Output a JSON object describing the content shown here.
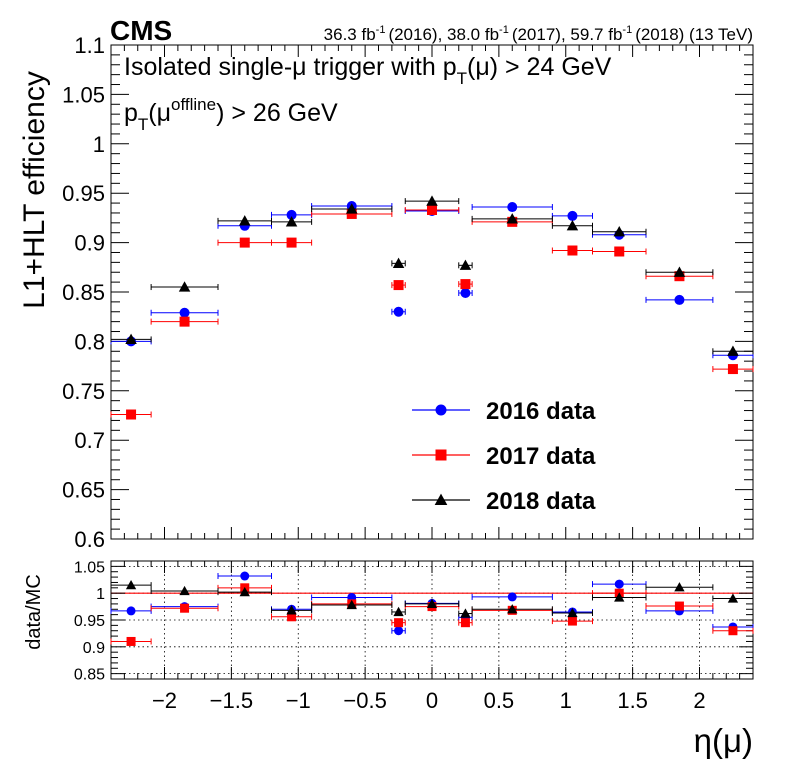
{
  "chart_data": [
    {
      "type": "scatter",
      "panel": "main",
      "experiment": "CMS",
      "lumi": "36.3 fb-1 (2016), 38.0 fb-1 (2017), 59.7 fb-1 (2018) (13 TeV)",
      "lumi_parts": {
        "v2016": "36.3 fb",
        "y2016": "(2016), ",
        "v2017": "38.0 fb",
        "y2017": "(2017), ",
        "v2018": "59.7 fb",
        "y2018": "(2018) (13 TeV)",
        "exp": "-1"
      },
      "annotation1": "Isolated single-μ trigger with pT(μ) > 24 GeV",
      "annotation1_parts": {
        "a": "Isolated single-μ trigger with p",
        "sub": "T",
        "b": "(μ) > 24 GeV"
      },
      "annotation2": "pT(μoffline) > 26 GeV",
      "annotation2_parts": {
        "a": "p",
        "sub": "T",
        "b": "(μ",
        "sup": "offline",
        "c": ") > 26 GeV"
      },
      "ylabel": "L1+HLT efficiency",
      "xlabel": "η(μ)",
      "ylim": [
        0.6,
        1.1
      ],
      "xlim": [
        -2.4,
        2.4
      ],
      "y_ticks": [
        "0.6",
        "0.65",
        "0.7",
        "0.75",
        "0.8",
        "0.85",
        "0.9",
        "0.95",
        "1",
        "1.05",
        "1.1"
      ],
      "x_ticks": [
        "−2",
        "−1.5",
        "−1",
        "−0.5",
        "0",
        "0.5",
        "1",
        "1.5",
        "2"
      ],
      "bins": [
        [
          -2.4,
          -2.1
        ],
        [
          -2.1,
          -1.6
        ],
        [
          -1.6,
          -1.2
        ],
        [
          -1.2,
          -0.9
        ],
        [
          -0.9,
          -0.3
        ],
        [
          -0.3,
          -0.2
        ],
        [
          -0.2,
          0.2
        ],
        [
          0.2,
          0.3
        ],
        [
          0.3,
          0.9
        ],
        [
          0.9,
          1.2
        ],
        [
          1.2,
          1.6
        ],
        [
          1.6,
          2.1
        ],
        [
          2.1,
          2.4
        ]
      ],
      "series": [
        {
          "name": "2016 data",
          "label": "2016 data",
          "color": "#0000ff",
          "marker": "circle",
          "values": [
            0.8,
            0.829,
            0.917,
            0.928,
            0.937,
            0.83,
            0.932,
            0.849,
            0.936,
            0.927,
            0.908,
            0.842,
            0.786
          ]
        },
        {
          "name": "2017 data",
          "label": "2017 data",
          "color": "#ff0000",
          "marker": "square",
          "values": [
            0.726,
            0.82,
            0.9,
            0.9,
            0.929,
            0.857,
            0.933,
            0.858,
            0.921,
            0.892,
            0.891,
            0.866,
            0.772
          ]
        },
        {
          "name": "2018 data",
          "label": "2018 data",
          "color": "#000000",
          "marker": "triangle",
          "values": [
            0.802,
            0.855,
            0.922,
            0.921,
            0.934,
            0.879,
            0.942,
            0.877,
            0.924,
            0.917,
            0.911,
            0.87,
            0.79
          ]
        }
      ],
      "legend": "center-right"
    },
    {
      "type": "scatter",
      "panel": "ratio",
      "ylabel": "data/MC",
      "ylim": [
        0.84,
        1.06
      ],
      "y_ticks": [
        "0.85",
        "0.9",
        "0.95",
        "1",
        "1.05"
      ],
      "reference_line": 1.0,
      "grid": true,
      "series": [
        {
          "name": "2016 data",
          "color": "#0000ff",
          "marker": "circle",
          "values": [
            0.967,
            0.975,
            1.032,
            0.97,
            0.992,
            0.93,
            0.981,
            0.955,
            0.993,
            0.965,
            1.017,
            0.967,
            0.937
          ]
        },
        {
          "name": "2017 data",
          "color": "#ff0000",
          "marker": "square",
          "values": [
            0.91,
            0.972,
            1.01,
            0.956,
            0.98,
            0.945,
            0.975,
            0.945,
            0.968,
            0.948,
            1.0,
            0.976,
            0.93
          ]
        },
        {
          "name": "2018 data",
          "color": "#000000",
          "marker": "triangle",
          "values": [
            1.015,
            1.004,
            1.002,
            0.968,
            0.978,
            0.965,
            0.98,
            0.962,
            0.97,
            0.963,
            0.992,
            1.011,
            0.99
          ]
        }
      ]
    }
  ]
}
